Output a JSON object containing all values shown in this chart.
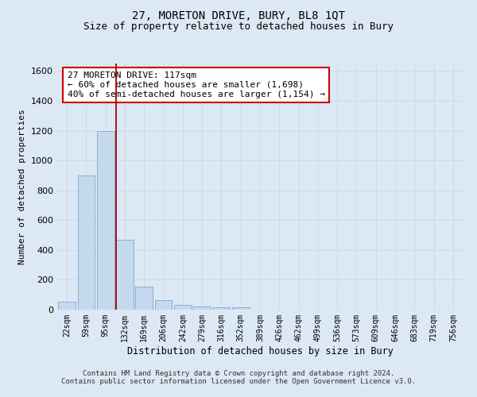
{
  "title": "27, MORETON DRIVE, BURY, BL8 1QT",
  "subtitle": "Size of property relative to detached houses in Bury",
  "xlabel": "Distribution of detached houses by size in Bury",
  "ylabel": "Number of detached properties",
  "footer_line1": "Contains HM Land Registry data © Crown copyright and database right 2024.",
  "footer_line2": "Contains public sector information licensed under the Open Government Licence v3.0.",
  "annotation_line1": "27 MORETON DRIVE: 117sqm",
  "annotation_line2": "← 60% of detached houses are smaller (1,698)",
  "annotation_line3": "40% of semi-detached houses are larger (1,154) →",
  "bar_color": "#c5d9ee",
  "bar_edge_color": "#7aaace",
  "grid_color": "#c8d8e8",
  "marker_line_color": "#aa0000",
  "annotation_box_facecolor": "#ffffff",
  "annotation_box_edge": "#cc0000",
  "background_color": "#dce8f4",
  "plot_bg_color": "#dce8f4",
  "bins": [
    "22sqm",
    "59sqm",
    "95sqm",
    "132sqm",
    "169sqm",
    "206sqm",
    "242sqm",
    "279sqm",
    "316sqm",
    "352sqm",
    "389sqm",
    "426sqm",
    "462sqm",
    "499sqm",
    "536sqm",
    "573sqm",
    "609sqm",
    "646sqm",
    "683sqm",
    "719sqm",
    "756sqm"
  ],
  "values": [
    55,
    900,
    1195,
    470,
    155,
    62,
    30,
    20,
    15,
    18,
    0,
    0,
    0,
    0,
    0,
    0,
    0,
    0,
    0,
    0,
    0
  ],
  "ylim": [
    0,
    1650
  ],
  "yticks": [
    0,
    200,
    400,
    600,
    800,
    1000,
    1200,
    1400,
    1600
  ],
  "marker_bin_index": 2.55,
  "title_fontsize": 10,
  "subtitle_fontsize": 9,
  "ylabel_fontsize": 8,
  "xlabel_fontsize": 8.5,
  "tick_fontsize": 8,
  "footer_fontsize": 6.5
}
